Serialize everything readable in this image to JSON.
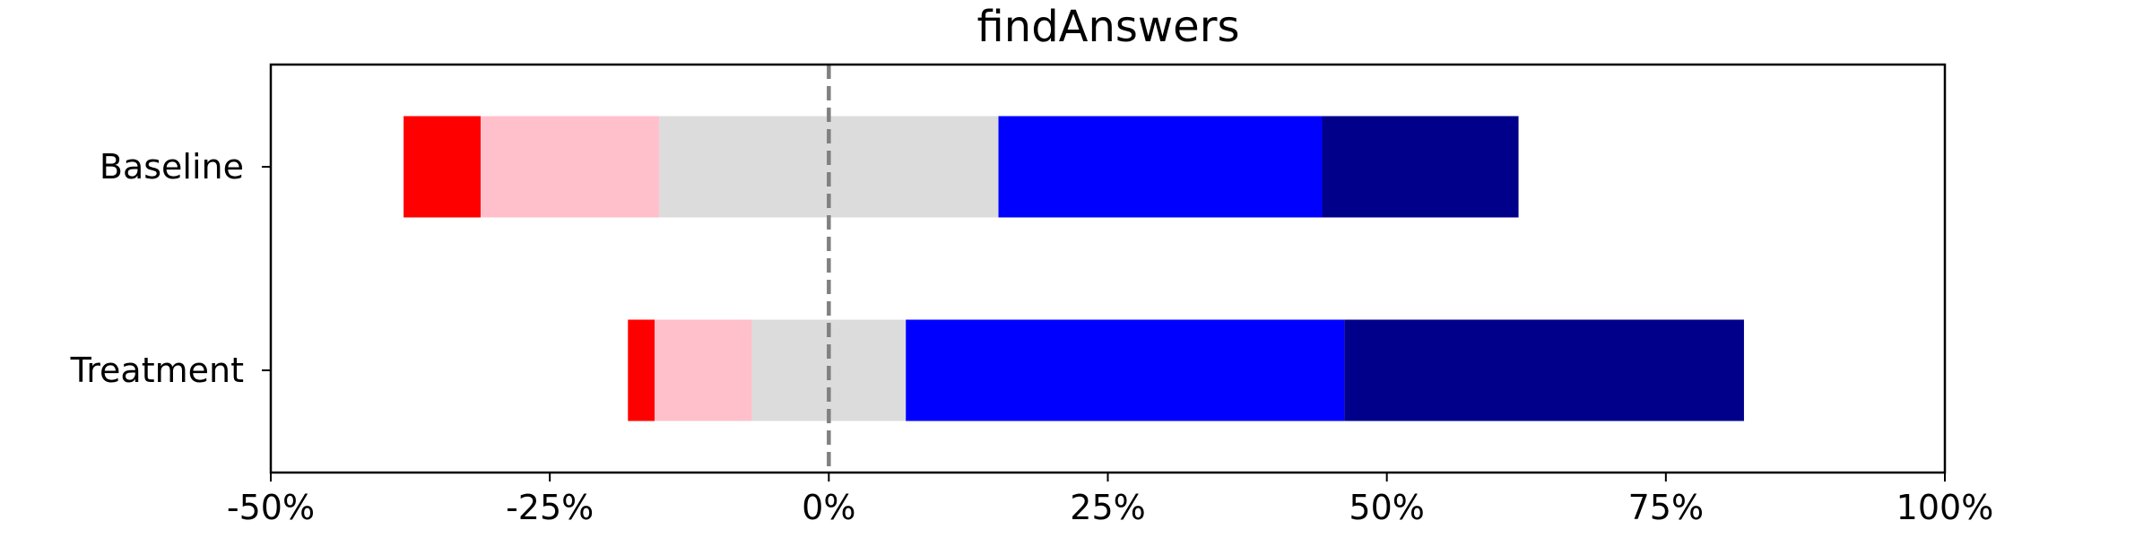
{
  "chart_data": {
    "type": "bar",
    "orientation": "horizontal",
    "stacked": "diverging",
    "title": "findAnswers",
    "xlabel": "",
    "ylabel": "",
    "xlim": [
      -50,
      100
    ],
    "x_ticks": [
      -50,
      -25,
      0,
      25,
      50,
      75,
      100
    ],
    "x_tick_labels": [
      "-50%",
      "-25%",
      "0%",
      "25%",
      "50%",
      "75%",
      "100%"
    ],
    "reference_line": {
      "x": 0,
      "style": "dashed",
      "color": "#808080"
    },
    "grid": false,
    "legend": "none",
    "categories": [
      "Baseline",
      "Treatment"
    ],
    "segment_colors": [
      "#ff0000",
      "#ffc0cb",
      "#dcdcdc",
      "#0000ff",
      "#00008b"
    ],
    "bars": [
      {
        "category": "Baseline",
        "segments": [
          {
            "start": -38.1,
            "end": -31.2
          },
          {
            "start": -31.2,
            "end": -15.2
          },
          {
            "start": -15.2,
            "end": 15.2
          },
          {
            "start": 15.2,
            "end": 44.2
          },
          {
            "start": 44.2,
            "end": 61.8
          }
        ]
      },
      {
        "category": "Treatment",
        "segments": [
          {
            "start": -18.0,
            "end": -15.6
          },
          {
            "start": -15.6,
            "end": -6.9
          },
          {
            "start": -6.9,
            "end": 6.9
          },
          {
            "start": 6.9,
            "end": 46.2
          },
          {
            "start": 46.2,
            "end": 82.0
          }
        ]
      }
    ]
  }
}
